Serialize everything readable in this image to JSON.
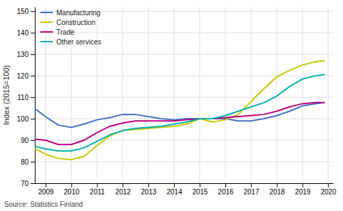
{
  "chart_data": {
    "type": "line",
    "ylabel": "Index (2015=100)",
    "source": "Source: Statistics Finland",
    "xlim": [
      2008.58,
      2020.2
    ],
    "ylim": [
      70,
      152
    ],
    "xticks": [
      2009,
      2010,
      2011,
      2012,
      2013,
      2014,
      2015,
      2016,
      2017,
      2018,
      2019,
      2020
    ],
    "yticks": [
      70,
      80,
      90,
      100,
      110,
      120,
      130,
      140,
      150
    ],
    "grid": true,
    "legend": "top-left",
    "x": [
      2008.6,
      2009.0,
      2009.5,
      2010.0,
      2010.5,
      2011.0,
      2011.5,
      2012.0,
      2012.5,
      2013.0,
      2013.5,
      2014.0,
      2014.5,
      2015.0,
      2015.5,
      2016.0,
      2016.5,
      2017.0,
      2017.5,
      2018.0,
      2018.5,
      2019.0,
      2019.5,
      2019.85
    ],
    "series": [
      {
        "name": "Manufacturing",
        "color": "#4472c4",
        "values": [
          104.5,
          101.0,
          97.0,
          96.0,
          97.5,
          99.5,
          100.5,
          102.0,
          102.0,
          101.0,
          100.0,
          99.5,
          100.0,
          100.0,
          100.0,
          100.0,
          99.0,
          99.0,
          100.0,
          101.5,
          103.5,
          106.0,
          107.0,
          107.5
        ]
      },
      {
        "name": "Construction",
        "color": "#c8c800",
        "values": [
          86.0,
          83.5,
          81.5,
          81.0,
          82.5,
          87.5,
          92.0,
          94.5,
          95.0,
          95.5,
          96.0,
          96.5,
          97.5,
          100.0,
          98.5,
          99.5,
          102.0,
          108.0,
          114.0,
          119.5,
          122.5,
          125.0,
          126.5,
          127.0
        ]
      },
      {
        "name": "Trade",
        "color": "#c00080",
        "values": [
          90.5,
          90.0,
          88.0,
          88.0,
          90.0,
          93.5,
          96.5,
          98.0,
          99.0,
          99.0,
          99.0,
          99.0,
          99.5,
          100.0,
          100.0,
          100.5,
          101.0,
          101.5,
          102.0,
          103.5,
          105.5,
          107.0,
          107.5,
          107.5
        ]
      },
      {
        "name": "Other services",
        "color": "#00b0b0",
        "values": [
          87.0,
          86.0,
          85.0,
          85.0,
          86.5,
          89.5,
          92.5,
          94.5,
          95.5,
          96.0,
          96.5,
          97.5,
          98.5,
          100.0,
          100.0,
          101.5,
          103.5,
          105.5,
          107.5,
          110.5,
          115.0,
          118.5,
          120.0,
          120.5
        ]
      }
    ]
  }
}
